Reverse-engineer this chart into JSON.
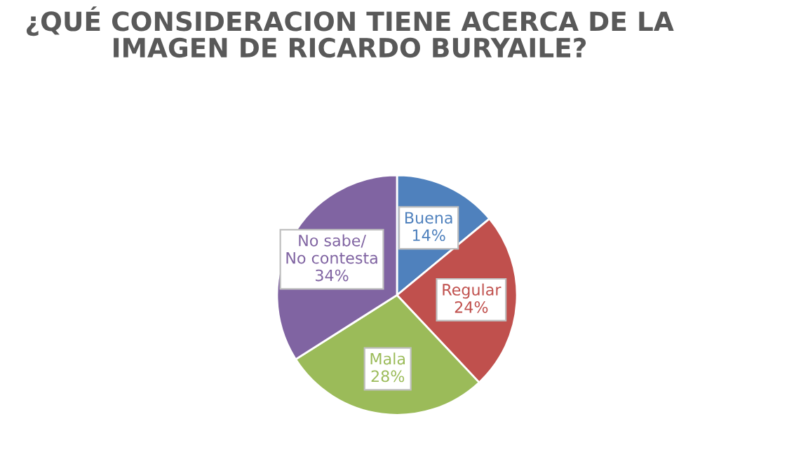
{
  "chart_data": {
    "type": "pie",
    "title": "¿QUÉ CONSIDERACION TIENE ACERCA DE LA IMAGEN DE RICARDO BURYAILE?",
    "categories": [
      "Buena",
      "Regular",
      "Mala",
      "No sabe/ No contesta"
    ],
    "values": [
      14,
      24,
      28,
      34
    ],
    "colors": [
      "#4f81bd",
      "#c0504d",
      "#9bbb59",
      "#8064a2"
    ],
    "value_labels": [
      "14%",
      "24%",
      "28%",
      "34%"
    ],
    "legend": false
  }
}
